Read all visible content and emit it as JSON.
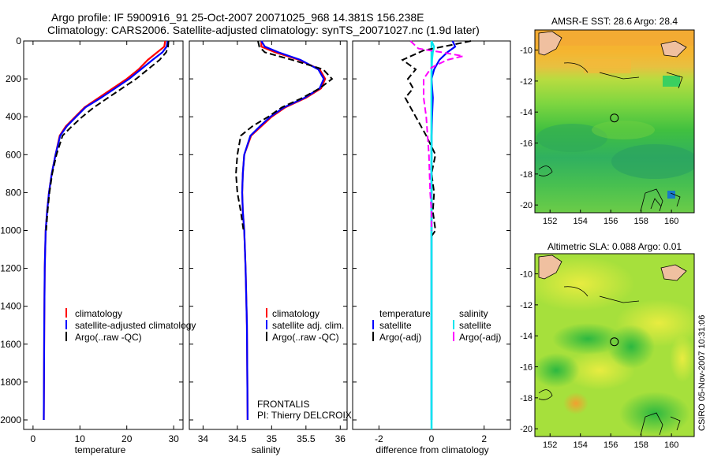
{
  "header": {
    "title": "Argo profile: IF 5900916_91 25-Oct-2007 20071025_968 14.381S 156.238E",
    "subtitle": "Climatology: CARS2006. Satellite-adjusted climatology: synTS_20071027.nc (1.9d later)"
  },
  "footer": {
    "vertical_stamp": "CSIRO 05-Nov-2007 10:31:06",
    "project": "FRONTALIS",
    "pi": "PI: Thierry DELCROIX"
  },
  "colors": {
    "climatology": "#ff0000",
    "satellite": "#0000ff",
    "argo": "#000000",
    "salinity_satellite": "#00e5ee",
    "salinity_argo": "#ff00ff"
  },
  "chart_data": [
    {
      "type": "line",
      "id": "temperature",
      "xlabel": "temperature",
      "xlim": [
        -2,
        32
      ],
      "ylim": [
        0,
        2050
      ],
      "y_inverted": true,
      "xticks": [
        0,
        10,
        20,
        30
      ],
      "yticks": [
        0,
        200,
        400,
        600,
        800,
        1000,
        1200,
        1400,
        1600,
        1800,
        2000
      ],
      "legend": [
        "climatology",
        "satellite-adjusted climatology",
        "Argo(..raw -QC)"
      ],
      "series": [
        {
          "name": "climatology",
          "style": "solid",
          "color": "#ff0000",
          "x": [
            28.2,
            28.0,
            26.5,
            24.5,
            22.5,
            20.0,
            17.0,
            14.0,
            11.0,
            9.0,
            7.0,
            5.7,
            4.8,
            4.0,
            3.4,
            3.0,
            2.7,
            2.5,
            2.4,
            2.3
          ],
          "y": [
            0,
            30,
            60,
            100,
            150,
            200,
            250,
            300,
            350,
            400,
            450,
            500,
            600,
            700,
            800,
            900,
            1000,
            1200,
            1500,
            2000
          ]
        },
        {
          "name": "satellite-adjusted climatology",
          "style": "solid",
          "color": "#0000ff",
          "x": [
            28.7,
            28.5,
            27.6,
            25.5,
            23.0,
            20.5,
            17.5,
            14.5,
            11.2,
            9.2,
            7.2,
            5.8,
            4.8,
            4.0,
            3.4,
            3.0,
            2.7,
            2.5,
            2.4,
            2.3
          ],
          "y": [
            0,
            30,
            60,
            100,
            150,
            200,
            250,
            300,
            350,
            400,
            450,
            500,
            600,
            700,
            800,
            900,
            1000,
            1200,
            1500,
            2000
          ]
        },
        {
          "name": "Argo(..raw -QC)",
          "style": "dashed",
          "color": "#000000",
          "x": [
            28.9,
            28.8,
            28.4,
            27.0,
            24.5,
            22.0,
            19.0,
            16.0,
            13.0,
            10.5,
            8.3,
            6.3,
            5.0,
            4.1,
            3.5,
            3.1,
            2.8
          ],
          "y": [
            0,
            30,
            60,
            100,
            150,
            200,
            250,
            300,
            350,
            400,
            450,
            500,
            600,
            700,
            800,
            900,
            1000
          ]
        }
      ]
    },
    {
      "type": "line",
      "id": "salinity",
      "xlabel": "salinity",
      "xlim": [
        33.8,
        36.1
      ],
      "ylim": [
        0,
        2050
      ],
      "y_inverted": true,
      "xticks": [
        34,
        34.5,
        35,
        35.5,
        36
      ],
      "legend": [
        "climatology",
        "satellite adj. clim.",
        "Argo(..raw -QC)"
      ],
      "series": [
        {
          "name": "climatology",
          "style": "solid",
          "color": "#ff0000",
          "x": [
            34.85,
            34.85,
            35.05,
            35.4,
            35.7,
            35.78,
            35.72,
            35.5,
            35.2,
            35.0,
            34.85,
            34.7,
            34.6,
            34.58,
            34.57,
            34.58,
            34.6,
            34.62,
            34.64,
            34.65
          ],
          "y": [
            0,
            30,
            60,
            100,
            150,
            200,
            250,
            300,
            350,
            400,
            450,
            500,
            600,
            700,
            800,
            900,
            1000,
            1200,
            1500,
            2000
          ]
        },
        {
          "name": "satellite adj. clim.",
          "style": "solid",
          "color": "#0000ff",
          "x": [
            34.85,
            34.9,
            35.1,
            35.42,
            35.68,
            35.76,
            35.7,
            35.48,
            35.18,
            34.98,
            34.83,
            34.69,
            34.6,
            34.58,
            34.57,
            34.58,
            34.6,
            34.62,
            34.64,
            34.65
          ],
          "y": [
            0,
            30,
            60,
            100,
            150,
            200,
            250,
            300,
            350,
            400,
            450,
            500,
            600,
            700,
            800,
            900,
            1000,
            1200,
            1500,
            2000
          ]
        },
        {
          "name": "Argo(..raw -QC)",
          "style": "dashed",
          "color": "#000000",
          "x": [
            34.8,
            34.82,
            34.9,
            35.3,
            35.75,
            35.88,
            35.7,
            35.45,
            35.15,
            34.95,
            34.72,
            34.55,
            34.5,
            34.48,
            34.5,
            34.55,
            34.59
          ],
          "y": [
            0,
            30,
            60,
            100,
            150,
            200,
            250,
            300,
            350,
            400,
            450,
            500,
            600,
            700,
            800,
            900,
            1000
          ]
        }
      ]
    },
    {
      "type": "line",
      "id": "difference",
      "xlabel": "difference from climatology",
      "xlim": [
        -3,
        3
      ],
      "ylim": [
        0,
        2050
      ],
      "y_inverted": true,
      "xticks": [
        -2,
        0,
        2
      ],
      "legend": [
        "temperature",
        "satellite",
        "Argo(-adj)",
        "salinity",
        "satellite",
        "Argo(-adj)"
      ],
      "series": [
        {
          "name": "temperature satellite",
          "style": "solid",
          "color": "#0000ff",
          "x": [
            0.8,
            0.9,
            0.6,
            0.3,
            0.1,
            0.0,
            0.05,
            0.02,
            0.0,
            0.0,
            0.0,
            0.0,
            0.0,
            0.0
          ],
          "y": [
            0,
            30,
            60,
            100,
            150,
            200,
            300,
            400,
            500,
            600,
            800,
            1000,
            1500,
            2000
          ]
        },
        {
          "name": "temperature Argo(-adj)",
          "style": "dashed",
          "color": "#000000",
          "x": [
            1.5,
            0.8,
            -0.3,
            -1.1,
            -0.6,
            -0.9,
            -0.7,
            -1.0,
            -0.8,
            -0.6,
            -0.4,
            -0.2,
            0.15,
            0.0,
            0.1,
            0.05,
            0.15,
            0.0
          ],
          "y": [
            0,
            20,
            50,
            100,
            150,
            200,
            250,
            300,
            350,
            400,
            450,
            500,
            600,
            700,
            800,
            900,
            1000,
            1030
          ]
        },
        {
          "name": "salinity satellite",
          "style": "solid",
          "color": "#00e5ee",
          "x": [
            0.0,
            0.1,
            0.05,
            0.02,
            0.0,
            0.0,
            0.0,
            0.0,
            0.0,
            0.0
          ],
          "y": [
            0,
            30,
            60,
            100,
            200,
            400,
            600,
            1000,
            1500,
            2000
          ]
        },
        {
          "name": "salinity Argo(-adj)",
          "style": "dashed",
          "color": "#ff00ff",
          "x": [
            -0.8,
            -0.5,
            0.4,
            1.2,
            0.6,
            0.0,
            -0.3,
            -0.3,
            -0.2,
            -0.15,
            -0.1,
            -0.05,
            0.0,
            0.0
          ],
          "y": [
            0,
            40,
            60,
            80,
            100,
            140,
            200,
            300,
            400,
            500,
            600,
            800,
            900,
            1000
          ]
        }
      ]
    },
    {
      "type": "heatmap",
      "id": "sst_map",
      "title": "AMSR-E SST: 28.6  Argo: 28.4",
      "xlim": [
        151,
        161.5
      ],
      "ylim": [
        -20.5,
        -8.7
      ],
      "xticks": [
        152,
        154,
        156,
        158,
        160
      ],
      "yticks": [
        -10,
        -12,
        -14,
        -16,
        -18,
        -20
      ],
      "argo_position": [
        156.238,
        -14.381
      ]
    },
    {
      "type": "heatmap",
      "id": "sla_map",
      "title": "Altimetric SLA: 0.088  Argo: 0.01",
      "xlim": [
        151,
        161.5
      ],
      "ylim": [
        -20.5,
        -8.7
      ],
      "xticks": [
        152,
        154,
        156,
        158,
        160
      ],
      "yticks": [
        -10,
        -12,
        -14,
        -16,
        -18,
        -20
      ],
      "argo_position": [
        156.238,
        -14.381
      ]
    }
  ]
}
